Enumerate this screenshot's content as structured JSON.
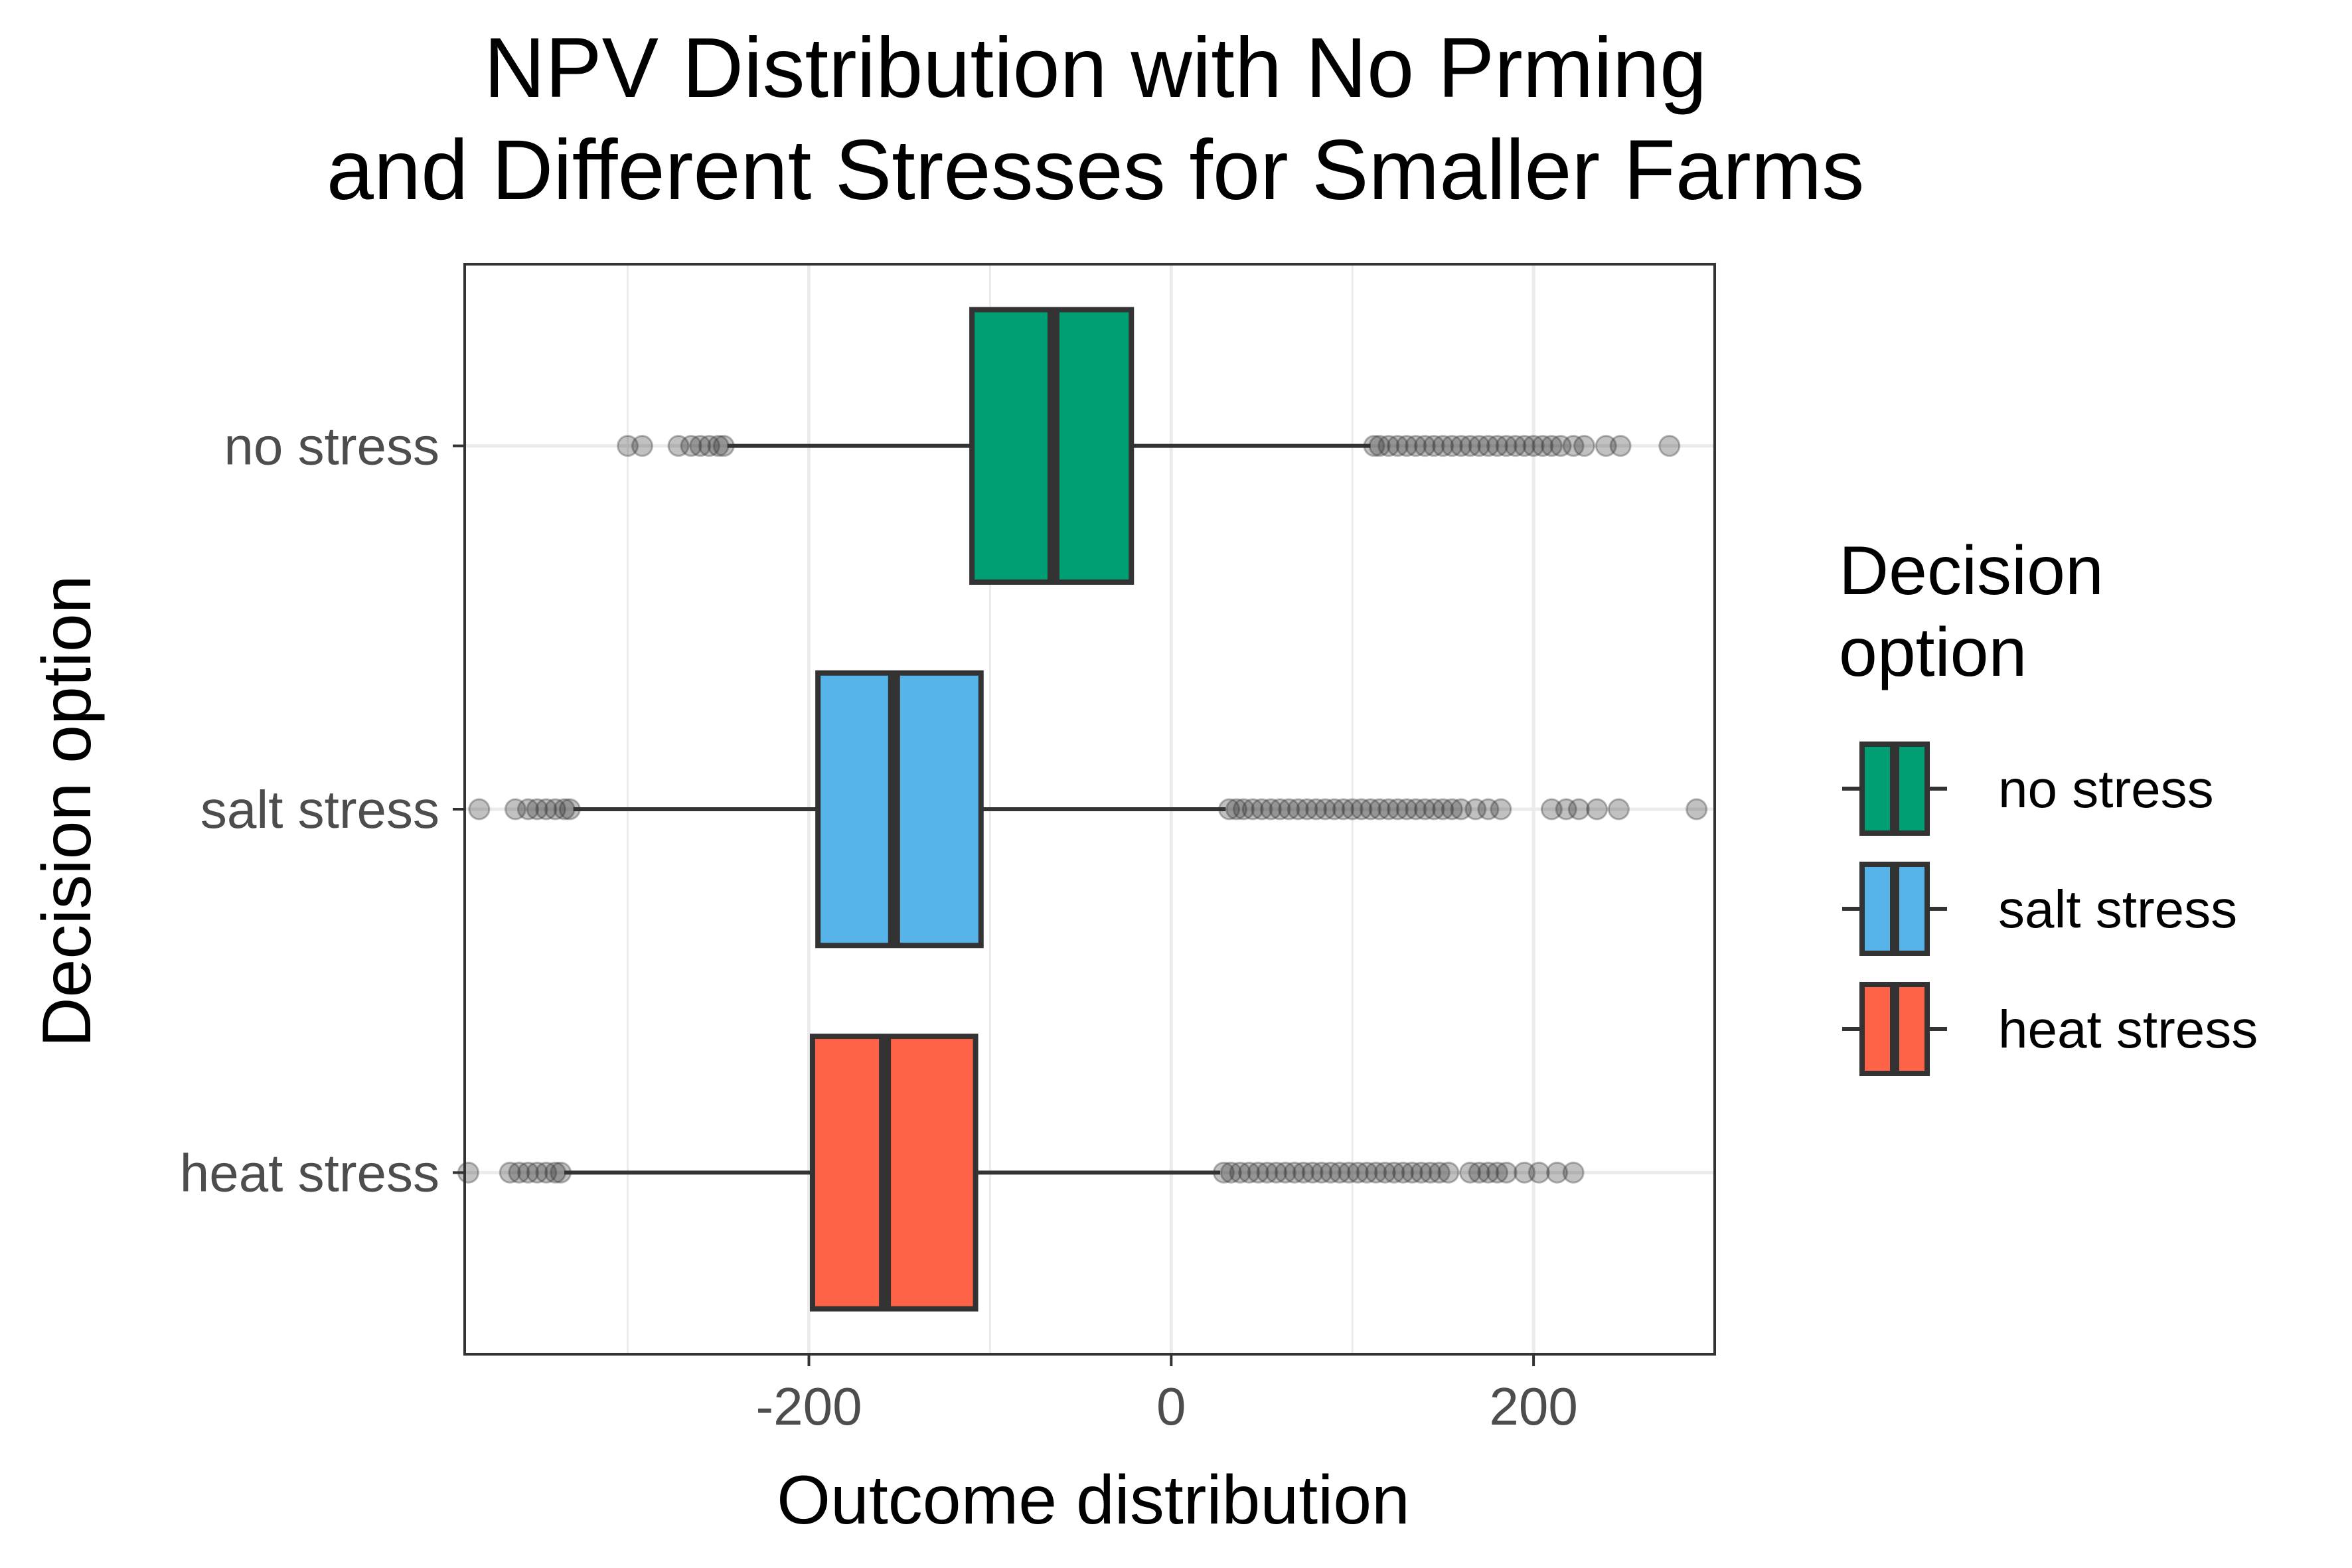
{
  "chart_data": {
    "type": "boxplot",
    "orientation": "horizontal",
    "title_lines": [
      "NPV Distribution with No Prming",
      "and Different Stresses for Smaller Farms"
    ],
    "xlabel": "Outcome distribution",
    "ylabel": "Decision option",
    "xlim": [
      -390,
      300
    ],
    "x_ticks": [
      -200,
      0,
      200
    ],
    "x_tick_labels": [
      "-200",
      "0",
      "200"
    ],
    "x_minor_ticks": [
      -300,
      -100,
      100
    ],
    "grid": true,
    "legend": {
      "title_lines": [
        "Decision",
        "option"
      ],
      "placement": "right"
    },
    "series": [
      {
        "name": "no stress",
        "color": "#009E73",
        "whisker_low": -245,
        "q1": -110,
        "median": -65,
        "q3": -22,
        "whisker_high": 110,
        "outliers": [
          -300,
          -292,
          -272,
          -265,
          -260,
          -255,
          -250,
          -247,
          112,
          115,
          120,
          125,
          130,
          135,
          140,
          145,
          150,
          155,
          160,
          165,
          170,
          175,
          180,
          185,
          190,
          195,
          200,
          205,
          210,
          215,
          222,
          228,
          240,
          248,
          275
        ]
      },
      {
        "name": "salt stress",
        "color": "#56B4E9",
        "whisker_low": -330,
        "q1": -195,
        "median": -153,
        "q3": -105,
        "whisker_high": 30,
        "outliers": [
          -382,
          -362,
          -355,
          -350,
          -345,
          -340,
          -335,
          -332,
          32,
          36,
          40,
          45,
          50,
          55,
          60,
          65,
          70,
          75,
          80,
          85,
          90,
          95,
          100,
          105,
          110,
          115,
          120,
          125,
          130,
          135,
          140,
          145,
          150,
          155,
          160,
          168,
          175,
          182,
          210,
          218,
          225,
          235,
          247,
          290
        ]
      },
      {
        "name": "heat stress",
        "color": "#FF6347",
        "whisker_low": -335,
        "q1": -198,
        "median": -158,
        "q3": -108,
        "whisker_high": 27,
        "outliers": [
          -388,
          -365,
          -360,
          -355,
          -350,
          -345,
          -340,
          -337,
          29,
          33,
          38,
          43,
          48,
          53,
          58,
          63,
          68,
          73,
          78,
          83,
          88,
          93,
          98,
          103,
          108,
          113,
          118,
          123,
          128,
          133,
          138,
          143,
          148,
          153,
          165,
          170,
          175,
          180,
          185,
          195,
          203,
          213,
          222
        ]
      }
    ]
  }
}
